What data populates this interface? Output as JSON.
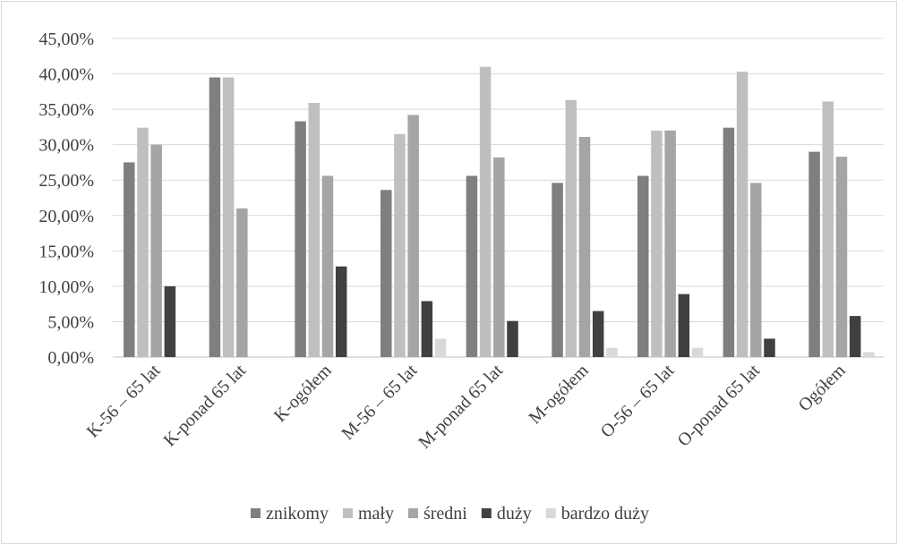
{
  "chart_data": {
    "type": "bar",
    "title": "",
    "xlabel": "",
    "ylabel": "",
    "ylim": [
      0,
      45
    ],
    "y_tick_step": 5,
    "y_tick_labels": [
      "0,00%",
      "5,00%",
      "10,00%",
      "15,00%",
      "20,00%",
      "25,00%",
      "30,00%",
      "35,00%",
      "40,00%",
      "45,00%"
    ],
    "grid": true,
    "legend_position": "bottom",
    "categories": [
      "K-56 – 65 lat",
      "K-ponad 65 lat",
      "K-ogółem",
      "M-56 – 65 lat",
      "M-ponad 65 lat",
      "M-ogółem",
      "O-56 – 65 lat",
      "O-ponad 65 lat",
      "Ogółem"
    ],
    "series": [
      {
        "name": "znikomy",
        "color": "#7f7f7f",
        "values": [
          27.5,
          39.5,
          33.3,
          23.6,
          25.6,
          24.6,
          25.6,
          32.4,
          29.0
        ]
      },
      {
        "name": "mały",
        "color": "#bfbfbf",
        "values": [
          32.4,
          39.5,
          35.9,
          31.5,
          41.0,
          36.3,
          32.0,
          40.3,
          36.1
        ]
      },
      {
        "name": "średni",
        "color": "#a5a5a5",
        "values": [
          30.0,
          21.0,
          25.6,
          34.2,
          28.2,
          31.1,
          32.0,
          24.6,
          28.3
        ]
      },
      {
        "name": "duży",
        "color": "#404040",
        "values": [
          10.0,
          0.0,
          12.8,
          7.9,
          5.1,
          6.5,
          8.9,
          2.6,
          5.8
        ]
      },
      {
        "name": "bardzo duży",
        "color": "#d9d9d9",
        "values": [
          0.0,
          0.0,
          0.0,
          2.6,
          0.0,
          1.3,
          1.3,
          0.0,
          0.7
        ]
      }
    ]
  }
}
